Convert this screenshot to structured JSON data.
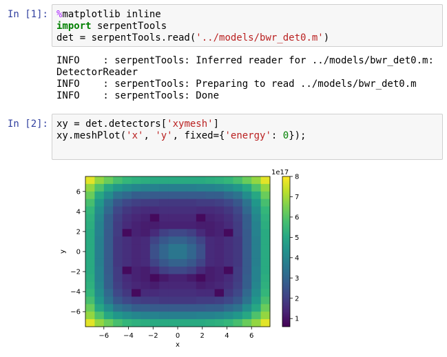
{
  "cells": [
    {
      "prompt": "In [1]:",
      "lines": [
        [
          {
            "t": "%",
            "c": "mag"
          },
          {
            "t": "matplotlib inline",
            "c": ""
          }
        ],
        [
          {
            "t": "import",
            "c": "kw"
          },
          {
            "t": " serpentTools",
            "c": ""
          }
        ],
        [
          {
            "t": "det = serpentTools.read(",
            "c": ""
          },
          {
            "t": "'../models/bwr_det0.m'",
            "c": "str"
          },
          {
            "t": ")",
            "c": ""
          }
        ]
      ],
      "output": [
        "INFO    : serpentTools: Inferred reader for ../models/bwr_det0.m: DetectorReader",
        "INFO    : serpentTools: Preparing to read ../models/bwr_det0.m",
        "INFO    : serpentTools: Done"
      ]
    },
    {
      "prompt": "In [2]:",
      "lines": [
        [
          {
            "t": "xy = det.detectors[",
            "c": ""
          },
          {
            "t": "'xymesh'",
            "c": "str"
          },
          {
            "t": "]",
            "c": ""
          }
        ],
        [
          {
            "t": "xy.meshPlot(",
            "c": ""
          },
          {
            "t": "'x'",
            "c": "str"
          },
          {
            "t": ", ",
            "c": ""
          },
          {
            "t": "'y'",
            "c": "str"
          },
          {
            "t": ", fixed={",
            "c": ""
          },
          {
            "t": "'energy'",
            "c": "str"
          },
          {
            "t": ": ",
            "c": ""
          },
          {
            "t": "0",
            "c": "num"
          },
          {
            "t": "});",
            "c": ""
          }
        ]
      ]
    }
  ],
  "chart_data": {
    "type": "heatmap",
    "xlabel": "x",
    "ylabel": "y",
    "xlim": [
      -7.5,
      7.5
    ],
    "ylim": [
      -7.5,
      7.5
    ],
    "xticks": [
      -6,
      -4,
      -2,
      0,
      2,
      4,
      6
    ],
    "yticks": [
      -6,
      -4,
      -2,
      0,
      2,
      4,
      6
    ],
    "colorbar_label": "1e17",
    "colorbar_ticks": [
      1,
      2,
      3,
      4,
      5,
      6,
      7,
      8
    ],
    "clim": [
      0.6,
      8.0
    ],
    "colormap": "viridis",
    "grid_size": 20,
    "values": [
      [
        7.7,
        6.8,
        6.3,
        5.8,
        5.5,
        5.3,
        5.2,
        5.1,
        5.1,
        5.1,
        5.1,
        5.1,
        5.1,
        5.2,
        5.3,
        5.5,
        5.8,
        6.3,
        6.8,
        7.7
      ],
      [
        6.8,
        5.9,
        5.0,
        4.5,
        4.2,
        4.0,
        3.9,
        3.9,
        3.8,
        3.8,
        3.8,
        3.8,
        3.9,
        3.9,
        4.0,
        4.2,
        4.5,
        5.0,
        5.9,
        6.8
      ],
      [
        6.3,
        5.0,
        4.2,
        3.4,
        3.1,
        2.8,
        2.8,
        2.7,
        2.7,
        2.7,
        2.7,
        2.7,
        2.7,
        2.8,
        2.8,
        3.1,
        3.4,
        4.2,
        5.0,
        6.3
      ],
      [
        5.8,
        4.5,
        3.4,
        2.6,
        2.2,
        2.0,
        1.9,
        1.9,
        1.8,
        1.8,
        1.8,
        1.8,
        1.9,
        1.9,
        2.0,
        2.2,
        2.6,
        3.4,
        4.5,
        5.8
      ],
      [
        5.5,
        4.2,
        3.1,
        2.2,
        1.8,
        1.6,
        1.5,
        1.5,
        1.6,
        1.6,
        1.6,
        1.6,
        1.5,
        1.5,
        1.6,
        1.8,
        2.2,
        3.1,
        4.2,
        5.5
      ],
      [
        5.3,
        4.0,
        2.8,
        2.0,
        1.6,
        1.4,
        1.3,
        0.8,
        1.4,
        1.4,
        1.4,
        1.4,
        0.8,
        1.3,
        1.4,
        1.6,
        2.0,
        2.8,
        4.0,
        5.3
      ],
      [
        5.2,
        3.9,
        2.8,
        1.9,
        1.5,
        1.3,
        1.2,
        1.2,
        1.3,
        1.3,
        1.3,
        1.3,
        1.2,
        1.2,
        1.3,
        1.5,
        1.9,
        2.8,
        3.9,
        5.2
      ],
      [
        5.1,
        3.9,
        2.7,
        1.9,
        0.8,
        1.3,
        1.2,
        1.5,
        2.0,
        2.2,
        2.2,
        2.0,
        1.5,
        1.2,
        1.3,
        0.8,
        1.9,
        2.7,
        3.9,
        5.1
      ],
      [
        5.1,
        3.8,
        2.7,
        1.8,
        1.6,
        1.4,
        1.5,
        2.1,
        2.6,
        2.9,
        2.9,
        2.6,
        2.1,
        1.5,
        1.4,
        1.6,
        1.8,
        2.7,
        3.8,
        5.1
      ],
      [
        5.1,
        3.8,
        2.7,
        1.8,
        1.6,
        1.4,
        1.5,
        2.4,
        3.0,
        3.5,
        3.5,
        3.0,
        2.4,
        1.5,
        1.4,
        1.6,
        1.8,
        2.7,
        3.8,
        5.1
      ],
      [
        5.1,
        3.8,
        2.7,
        1.8,
        1.6,
        1.4,
        1.5,
        2.4,
        3.0,
        3.5,
        3.5,
        3.0,
        2.4,
        1.5,
        1.4,
        1.6,
        1.8,
        2.7,
        3.8,
        5.1
      ],
      [
        5.1,
        3.8,
        2.7,
        1.8,
        1.6,
        1.4,
        1.5,
        2.1,
        2.6,
        2.9,
        2.9,
        2.6,
        2.1,
        1.5,
        1.4,
        1.6,
        1.8,
        2.7,
        3.8,
        5.1
      ],
      [
        5.1,
        3.9,
        2.7,
        1.9,
        0.8,
        1.3,
        1.2,
        1.5,
        2.0,
        2.2,
        2.2,
        2.0,
        1.5,
        1.2,
        1.3,
        0.8,
        1.9,
        2.7,
        3.9,
        5.1
      ],
      [
        5.2,
        3.9,
        2.8,
        1.9,
        1.5,
        1.3,
        1.2,
        0.8,
        1.1,
        1.3,
        1.3,
        1.1,
        0.8,
        1.2,
        1.3,
        1.5,
        1.9,
        2.8,
        3.9,
        5.2
      ],
      [
        5.3,
        4.0,
        2.8,
        2.0,
        1.6,
        1.4,
        1.3,
        1.2,
        1.4,
        1.4,
        1.4,
        1.4,
        1.2,
        1.3,
        1.4,
        1.6,
        2.0,
        2.8,
        4.0,
        5.3
      ],
      [
        5.5,
        4.2,
        3.1,
        2.2,
        1.8,
        0.8,
        1.5,
        1.5,
        1.6,
        1.6,
        1.6,
        1.6,
        1.5,
        1.5,
        0.8,
        1.8,
        2.2,
        3.1,
        4.2,
        5.5
      ],
      [
        5.8,
        4.5,
        3.4,
        2.6,
        2.2,
        2.0,
        1.9,
        1.9,
        1.8,
        1.8,
        1.8,
        1.8,
        1.9,
        1.9,
        2.0,
        2.2,
        2.6,
        3.4,
        4.5,
        5.8
      ],
      [
        6.3,
        5.0,
        4.2,
        3.4,
        3.1,
        2.8,
        2.8,
        2.7,
        2.7,
        2.7,
        2.7,
        2.7,
        2.7,
        2.8,
        2.8,
        3.1,
        3.4,
        4.2,
        5.0,
        6.3
      ],
      [
        6.8,
        5.9,
        5.0,
        4.5,
        4.2,
        4.0,
        3.9,
        3.9,
        3.8,
        3.8,
        3.8,
        3.8,
        3.9,
        3.9,
        4.0,
        4.2,
        4.5,
        5.0,
        5.9,
        6.8
      ],
      [
        7.7,
        6.8,
        6.3,
        5.8,
        5.5,
        5.3,
        5.2,
        5.1,
        5.1,
        5.1,
        5.1,
        5.1,
        5.1,
        5.2,
        5.3,
        5.5,
        5.8,
        6.3,
        6.8,
        7.7
      ]
    ]
  }
}
